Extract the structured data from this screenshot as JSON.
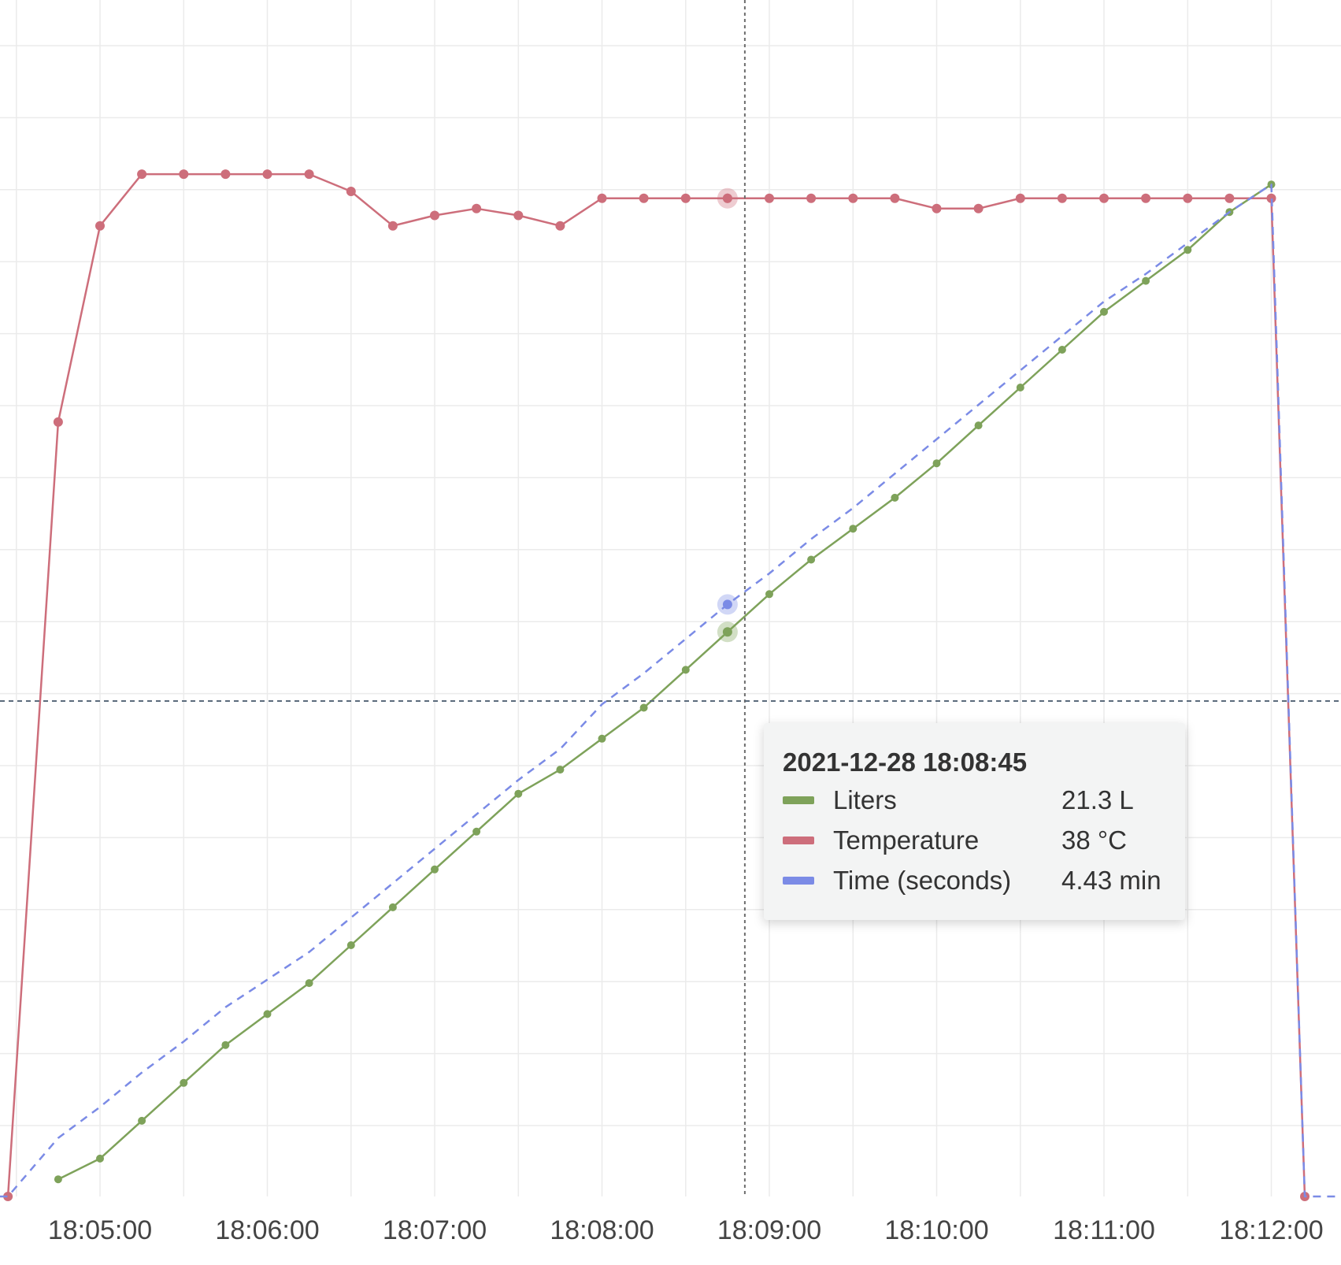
{
  "chart_data": {
    "type": "line",
    "title": "",
    "xlabel": "",
    "ylabel": "",
    "x_ticks": [
      "18:05:00",
      "18:06:00",
      "18:07:00",
      "18:08:00",
      "18:09:00",
      "18:10:00",
      "18:11:00",
      "18:12:00"
    ],
    "x_range": [
      "18:04:24",
      "18:12:48"
    ],
    "grid": true,
    "y_axis_labels_visible": false,
    "crosshair": {
      "x": "18:08:45",
      "horizontal": true
    },
    "series": [
      {
        "name": "Liters",
        "color": "#7ea25a",
        "dash": false,
        "unit": "L",
        "points": [
          [
            "18:04:45",
            0.5
          ],
          [
            "18:05:00",
            1.1
          ],
          [
            "18:05:15",
            2.2
          ],
          [
            "18:05:30",
            3.3
          ],
          [
            "18:05:45",
            4.4
          ],
          [
            "18:06:00",
            5.3
          ],
          [
            "18:06:15",
            6.2
          ],
          [
            "18:06:30",
            7.3
          ],
          [
            "18:06:45",
            8.4
          ],
          [
            "18:07:00",
            9.5
          ],
          [
            "18:07:15",
            10.6
          ],
          [
            "18:07:30",
            11.7
          ],
          [
            "18:07:45",
            12.4
          ],
          [
            "18:08:00",
            13.3
          ],
          [
            "18:08:15",
            14.2
          ],
          [
            "18:08:30",
            15.3
          ],
          [
            "18:08:45",
            16.4
          ],
          [
            "18:09:00",
            17.5
          ],
          [
            "18:09:15",
            18.5
          ],
          [
            "18:09:30",
            19.4
          ],
          [
            "18:09:45",
            20.3
          ],
          [
            "18:10:00",
            21.3
          ],
          [
            "18:10:15",
            22.4
          ],
          [
            "18:10:30",
            23.5
          ],
          [
            "18:10:45",
            24.6
          ],
          [
            "18:11:00",
            25.7
          ],
          [
            "18:11:15",
            26.6
          ],
          [
            "18:11:30",
            27.5
          ],
          [
            "18:11:45",
            28.6
          ],
          [
            "18:12:00",
            29.4
          ]
        ]
      },
      {
        "name": "Temperature",
        "color": "#cd6e7b",
        "dash": false,
        "unit": "°C",
        "points": [
          [
            "18:04:27",
            0
          ],
          [
            "18:04:45",
            22.5
          ],
          [
            "18:05:00",
            28.2
          ],
          [
            "18:05:15",
            29.7
          ],
          [
            "18:05:30",
            29.7
          ],
          [
            "18:05:45",
            29.7
          ],
          [
            "18:06:00",
            29.7
          ],
          [
            "18:06:15",
            29.7
          ],
          [
            "18:06:30",
            29.2
          ],
          [
            "18:06:45",
            28.2
          ],
          [
            "18:07:00",
            28.5
          ],
          [
            "18:07:15",
            28.7
          ],
          [
            "18:07:30",
            28.5
          ],
          [
            "18:07:45",
            28.2
          ],
          [
            "18:08:00",
            29.0
          ],
          [
            "18:08:15",
            29.0
          ],
          [
            "18:08:30",
            29.0
          ],
          [
            "18:08:45",
            29.0
          ],
          [
            "18:09:00",
            29.0
          ],
          [
            "18:09:15",
            29.0
          ],
          [
            "18:09:30",
            29.0
          ],
          [
            "18:09:45",
            29.0
          ],
          [
            "18:10:00",
            28.7
          ],
          [
            "18:10:15",
            28.7
          ],
          [
            "18:10:30",
            29.0
          ],
          [
            "18:10:45",
            29.0
          ],
          [
            "18:11:00",
            29.0
          ],
          [
            "18:11:15",
            29.0
          ],
          [
            "18:11:30",
            29.0
          ],
          [
            "18:11:45",
            29.0
          ],
          [
            "18:12:00",
            29.0
          ],
          [
            "18:12:12",
            0
          ]
        ]
      },
      {
        "name": "Time (seconds)",
        "color": "#7b8be6",
        "dash": true,
        "unit": "min",
        "points": [
          [
            "18:04:24",
            0
          ],
          [
            "18:04:27",
            0
          ],
          [
            "18:04:45",
            1.7
          ],
          [
            "18:05:00",
            2.6
          ],
          [
            "18:05:15",
            3.6
          ],
          [
            "18:05:30",
            4.5
          ],
          [
            "18:05:45",
            5.5
          ],
          [
            "18:06:00",
            6.3
          ],
          [
            "18:06:15",
            7.1
          ],
          [
            "18:06:30",
            8.1
          ],
          [
            "18:06:45",
            9.1
          ],
          [
            "18:07:00",
            10.1
          ],
          [
            "18:07:15",
            11.1
          ],
          [
            "18:07:30",
            12.1
          ],
          [
            "18:07:45",
            13.0
          ],
          [
            "18:08:00",
            14.3
          ],
          [
            "18:08:15",
            15.2
          ],
          [
            "18:08:30",
            16.2
          ],
          [
            "18:08:45",
            17.2
          ],
          [
            "18:09:00",
            18.1
          ],
          [
            "18:09:15",
            19.1
          ],
          [
            "18:09:30",
            20.0
          ],
          [
            "18:09:45",
            21.0
          ],
          [
            "18:10:00",
            22.0
          ],
          [
            "18:10:15",
            23.0
          ],
          [
            "18:10:30",
            24.0
          ],
          [
            "18:10:45",
            25.0
          ],
          [
            "18:11:00",
            26.0
          ],
          [
            "18:11:15",
            26.8
          ],
          [
            "18:11:30",
            27.7
          ],
          [
            "18:11:45",
            28.6
          ],
          [
            "18:12:00",
            29.4
          ],
          [
            "18:12:12",
            0
          ],
          [
            "18:12:48",
            0
          ]
        ]
      }
    ]
  },
  "tooltip": {
    "timestamp": "2021-12-28 18:08:45",
    "rows": [
      {
        "name": "Liters",
        "value": "21.3 L",
        "color": "#7ea25a"
      },
      {
        "name": "Temperature",
        "value": "38 °C",
        "color": "#cd6e7b"
      },
      {
        "name": "Time (seconds)",
        "value": "4.43 min",
        "color": "#7b8be6"
      }
    ]
  }
}
